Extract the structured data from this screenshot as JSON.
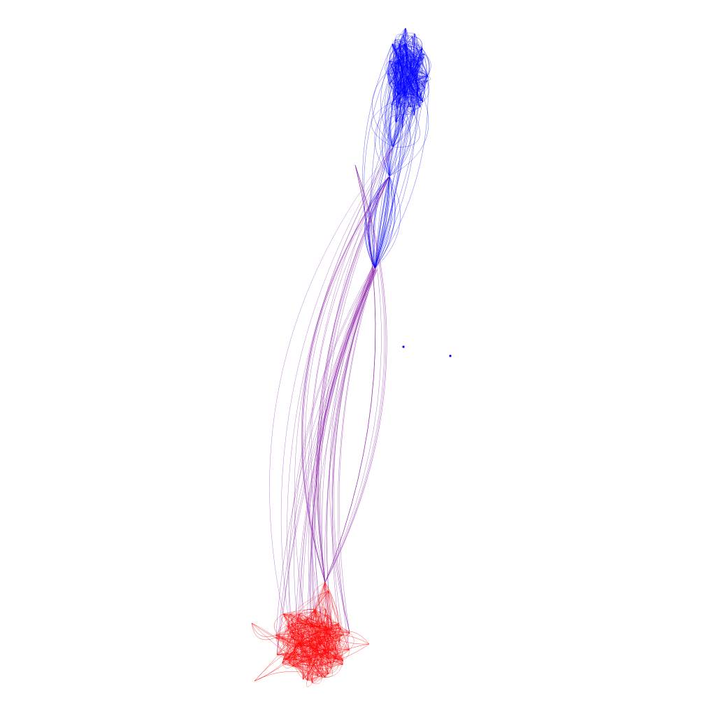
{
  "graph": {
    "type": "network",
    "communities": [
      {
        "name": "",
        "color": "#0000ff"
      },
      {
        "name": "",
        "color": "#ff0000"
      }
    ],
    "bridge_color": "#8a1fa8",
    "background": "#ffffff"
  }
}
